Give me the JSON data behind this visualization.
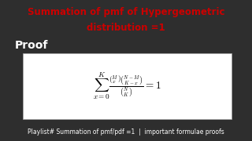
{
  "title_line1": "Summation of pmf of Hypergeometric",
  "title_line2": "distribution =1",
  "title_color": "#cc0000",
  "title_bg_color": "#c8b89a",
  "body_bg_color": "#2e2e2e",
  "proof_label": "Proof",
  "proof_color": "#ffffff",
  "formula_box_color": "#ffffff",
  "formula_tex": "$\\sum_{x=0}^{K} \\frac{\\binom{M}{x}\\binom{N-M}{K-x}}{\\binom{N}{K}} = 1$",
  "footer_text": "Playlist# Summation of pmf/pdf =1  |  important formulae proofs",
  "footer_color": "#ffffff",
  "footer_bg_color": "#1a1a1a",
  "title_fontsize": 8.5,
  "proof_fontsize": 10,
  "formula_fontsize": 9.5,
  "footer_fontsize": 5.5
}
